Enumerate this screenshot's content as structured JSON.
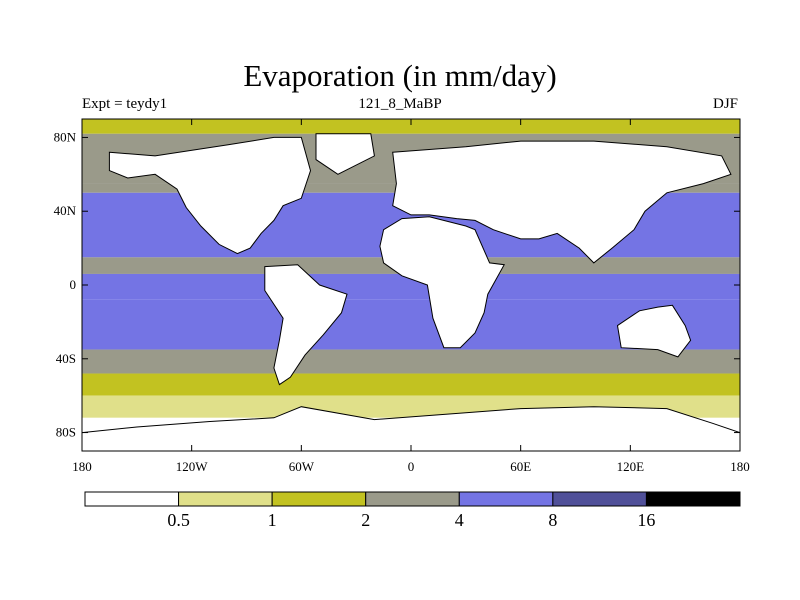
{
  "chart_data": {
    "type": "heatmap",
    "title": "Evaporation (in mm/day)",
    "subtitle_left": "Expt = teydy1",
    "subtitle_center": "121_8_MaBP",
    "subtitle_right": "DJF",
    "x_ticks": [
      {
        "value": -180,
        "label": "180"
      },
      {
        "value": -120,
        "label": "120W"
      },
      {
        "value": -60,
        "label": "60W"
      },
      {
        "value": 0,
        "label": "0"
      },
      {
        "value": 60,
        "label": "60E"
      },
      {
        "value": 120,
        "label": "120E"
      },
      {
        "value": 180,
        "label": "180"
      }
    ],
    "y_ticks": [
      {
        "value": 80,
        "label": "80N"
      },
      {
        "value": 40,
        "label": "40N"
      },
      {
        "value": 0,
        "label": "0"
      },
      {
        "value": -40,
        "label": "40S"
      },
      {
        "value": -80,
        "label": "80S"
      }
    ],
    "xlim": [
      -180,
      180
    ],
    "ylim": [
      -90,
      90
    ],
    "levels": [
      "0.5",
      "1",
      "2",
      "4",
      "8",
      "16"
    ],
    "colors": [
      "#ffffff",
      "#e0e08a",
      "#c2c221",
      "#9a9a8a",
      "#7474e4",
      "#505099",
      "#000000"
    ],
    "ocean_bands": [
      {
        "lat_from": 90,
        "lat_to": 82,
        "level_index": 2
      },
      {
        "lat_from": 82,
        "lat_to": 55,
        "level_index": 3
      },
      {
        "lat_from": 55,
        "lat_to": 50,
        "level_index": 3
      },
      {
        "lat_from": 50,
        "lat_to": 15,
        "level_index": 4
      },
      {
        "lat_from": 15,
        "lat_to": 6,
        "level_index": 3
      },
      {
        "lat_from": 6,
        "lat_to": -8,
        "level_index": 4
      },
      {
        "lat_from": -8,
        "lat_to": -35,
        "level_index": 4
      },
      {
        "lat_from": -35,
        "lat_to": -48,
        "level_index": 3
      },
      {
        "lat_from": -48,
        "lat_to": -60,
        "level_index": 2
      },
      {
        "lat_from": -60,
        "lat_to": -72,
        "level_index": 1
      },
      {
        "lat_from": -72,
        "lat_to": -90,
        "level_index": 0
      }
    ],
    "land_regions": [
      {
        "name": "north-america",
        "level_index": 0,
        "lonlat": [
          [
            -165,
            72
          ],
          [
            -140,
            70
          ],
          [
            -100,
            76
          ],
          [
            -75,
            80
          ],
          [
            -60,
            80
          ],
          [
            -55,
            62
          ],
          [
            -60,
            47
          ],
          [
            -70,
            43
          ],
          [
            -75,
            35
          ],
          [
            -82,
            28
          ],
          [
            -88,
            20
          ],
          [
            -95,
            17
          ],
          [
            -105,
            22
          ],
          [
            -115,
            32
          ],
          [
            -123,
            42
          ],
          [
            -128,
            52
          ],
          [
            -140,
            60
          ],
          [
            -155,
            58
          ],
          [
            -165,
            62
          ]
        ]
      },
      {
        "name": "greenland",
        "level_index": 0,
        "lonlat": [
          [
            -52,
            82
          ],
          [
            -22,
            82
          ],
          [
            -20,
            70
          ],
          [
            -40,
            60
          ],
          [
            -52,
            68
          ]
        ]
      },
      {
        "name": "eurasia",
        "level_index": 0,
        "lonlat": [
          [
            -10,
            72
          ],
          [
            30,
            75
          ],
          [
            60,
            78
          ],
          [
            100,
            78
          ],
          [
            140,
            75
          ],
          [
            170,
            70
          ],
          [
            175,
            60
          ],
          [
            160,
            55
          ],
          [
            140,
            50
          ],
          [
            128,
            40
          ],
          [
            122,
            30
          ],
          [
            110,
            20
          ],
          [
            100,
            12
          ],
          [
            92,
            20
          ],
          [
            80,
            28
          ],
          [
            70,
            25
          ],
          [
            60,
            25
          ],
          [
            45,
            30
          ],
          [
            35,
            35
          ],
          [
            25,
            36
          ],
          [
            10,
            38
          ],
          [
            0,
            38
          ],
          [
            -10,
            43
          ],
          [
            -8,
            55
          ]
        ]
      },
      {
        "name": "africa",
        "level_index": 0,
        "lonlat": [
          [
            -17,
            21
          ],
          [
            -15,
            30
          ],
          [
            -5,
            36
          ],
          [
            10,
            37
          ],
          [
            30,
            32
          ],
          [
            35,
            30
          ],
          [
            43,
            12
          ],
          [
            51,
            11
          ],
          [
            42,
            -5
          ],
          [
            40,
            -15
          ],
          [
            35,
            -26
          ],
          [
            27,
            -34
          ],
          [
            18,
            -34
          ],
          [
            12,
            -18
          ],
          [
            9,
            0
          ],
          [
            -5,
            5
          ],
          [
            -15,
            12
          ]
        ]
      },
      {
        "name": "south-america",
        "level_index": 0,
        "lonlat": [
          [
            -80,
            10
          ],
          [
            -62,
            11
          ],
          [
            -50,
            0
          ],
          [
            -35,
            -5
          ],
          [
            -38,
            -15
          ],
          [
            -48,
            -27
          ],
          [
            -58,
            -38
          ],
          [
            -66,
            -50
          ],
          [
            -72,
            -54
          ],
          [
            -75,
            -45
          ],
          [
            -72,
            -30
          ],
          [
            -70,
            -18
          ],
          [
            -80,
            -3
          ]
        ]
      },
      {
        "name": "australia",
        "level_index": 0,
        "lonlat": [
          [
            113,
            -22
          ],
          [
            125,
            -14
          ],
          [
            135,
            -12
          ],
          [
            143,
            -11
          ],
          [
            150,
            -22
          ],
          [
            153,
            -30
          ],
          [
            146,
            -39
          ],
          [
            135,
            -35
          ],
          [
            115,
            -34
          ]
        ]
      },
      {
        "name": "antarctica",
        "level_index": 0,
        "lonlat": [
          [
            -180,
            -90
          ],
          [
            180,
            -90
          ],
          [
            180,
            -80
          ],
          [
            165,
            -75
          ],
          [
            140,
            -67
          ],
          [
            100,
            -66
          ],
          [
            60,
            -67
          ],
          [
            20,
            -70
          ],
          [
            -20,
            -73
          ],
          [
            -60,
            -66
          ],
          [
            -75,
            -72
          ],
          [
            -110,
            -74
          ],
          [
            -150,
            -77
          ],
          [
            -180,
            -80
          ]
        ]
      }
    ]
  }
}
